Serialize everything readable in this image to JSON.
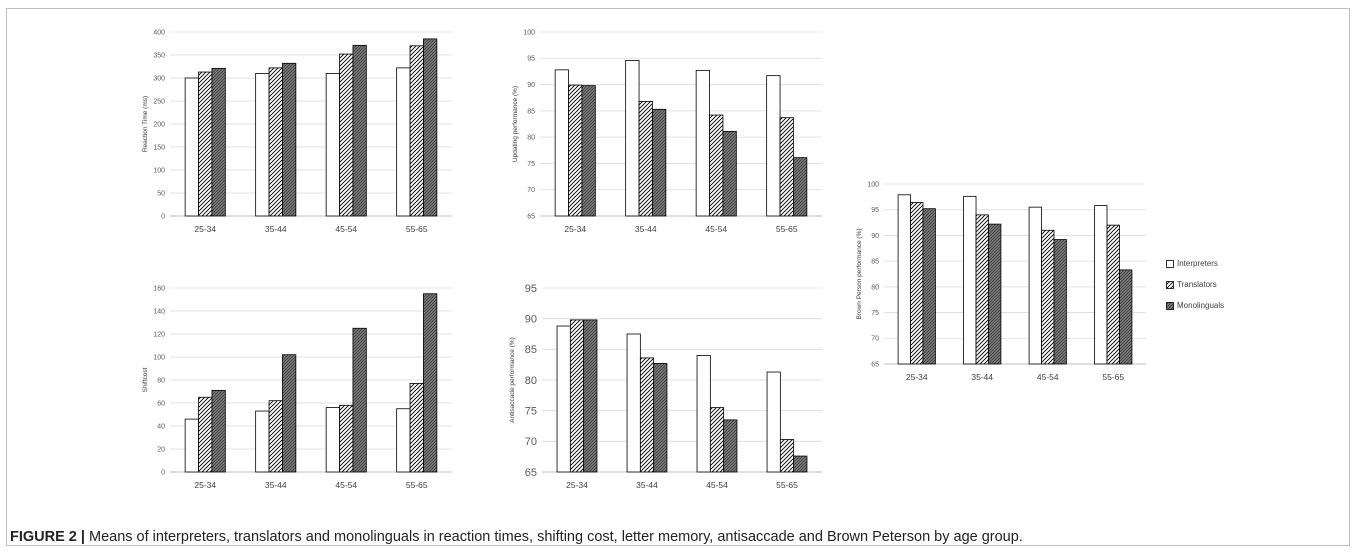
{
  "caption": {
    "label": "FIGURE 2 |",
    "text": " Means of interpreters, translators and monolinguals in reaction times, shifting cost, letter memory, antisaccade and Brown Peterson by age group."
  },
  "legend": {
    "items": [
      {
        "label": "Interpreters",
        "pattern": "white"
      },
      {
        "label": "Translators",
        "pattern": "hatch"
      },
      {
        "label": "Monolinguals",
        "pattern": "dark"
      }
    ]
  },
  "chart_data": [
    {
      "id": "reaction-time",
      "type": "bar",
      "ylabel": "Reaction Time (ms)",
      "categories": [
        "25-34",
        "35-44",
        "45-54",
        "55-65"
      ],
      "ylim": [
        0,
        400
      ],
      "yticks": [
        0,
        50,
        100,
        150,
        200,
        250,
        300,
        350,
        400
      ],
      "grid": true,
      "series": [
        {
          "name": "Interpreters",
          "values": [
            300,
            310,
            310,
            322
          ]
        },
        {
          "name": "Translators",
          "values": [
            313,
            322,
            352,
            370
          ]
        },
        {
          "name": "Monolinguals",
          "values": [
            321,
            332,
            371,
            385
          ]
        }
      ]
    },
    {
      "id": "updating",
      "type": "bar",
      "ylabel": "Updating performance (%)",
      "categories": [
        "25-34",
        "35-44",
        "45-54",
        "55-65"
      ],
      "ylim": [
        65,
        100
      ],
      "yticks": [
        65,
        70,
        75,
        80,
        85,
        90,
        95,
        100
      ],
      "grid": true,
      "series": [
        {
          "name": "Interpreters",
          "values": [
            92.8,
            94.6,
            92.7,
            91.7
          ]
        },
        {
          "name": "Translators",
          "values": [
            89.9,
            86.8,
            84.2,
            83.7
          ]
        },
        {
          "name": "Monolinguals",
          "values": [
            89.8,
            85.3,
            81.1,
            76.1
          ]
        }
      ]
    },
    {
      "id": "brown-peterson",
      "type": "bar",
      "ylabel": "Brown Person performance (%)",
      "categories": [
        "25-34",
        "35-44",
        "45-54",
        "55-65"
      ],
      "ylim": [
        65,
        100
      ],
      "yticks": [
        65,
        70,
        75,
        80,
        85,
        90,
        95,
        100
      ],
      "grid": true,
      "legend_position": "right",
      "series": [
        {
          "name": "Interpreters",
          "values": [
            97.9,
            97.6,
            95.5,
            95.8
          ]
        },
        {
          "name": "Translators",
          "values": [
            96.4,
            94.0,
            91.0,
            92.0
          ]
        },
        {
          "name": "Monolinguals",
          "values": [
            95.2,
            92.2,
            89.2,
            83.3
          ]
        }
      ]
    },
    {
      "id": "shift-cost",
      "type": "bar",
      "ylabel": "Shiftcost",
      "categories": [
        "25-34",
        "35-44",
        "45-54",
        "55-65"
      ],
      "ylim": [
        0,
        160
      ],
      "yticks": [
        0,
        20,
        40,
        60,
        80,
        100,
        120,
        140,
        160
      ],
      "grid": true,
      "series": [
        {
          "name": "Interpreters",
          "values": [
            46,
            53,
            56,
            55
          ]
        },
        {
          "name": "Translators",
          "values": [
            65,
            62,
            58,
            77
          ]
        },
        {
          "name": "Monolinguals",
          "values": [
            71,
            102,
            125,
            155
          ]
        }
      ]
    },
    {
      "id": "antisaccade",
      "type": "bar",
      "ylabel": "Antisaccade performance (%)",
      "categories": [
        "25-34",
        "35-44",
        "45-54",
        "55-65"
      ],
      "ylim": [
        65,
        95
      ],
      "yticks": [
        65,
        70,
        75,
        80,
        85,
        90,
        95
      ],
      "grid": true,
      "series": [
        {
          "name": "Interpreters",
          "values": [
            88.8,
            87.5,
            84.0,
            81.3
          ]
        },
        {
          "name": "Translators",
          "values": [
            89.8,
            83.6,
            75.5,
            70.3
          ]
        },
        {
          "name": "Monolinguals",
          "values": [
            89.8,
            82.7,
            73.5,
            67.6
          ]
        }
      ]
    }
  ]
}
